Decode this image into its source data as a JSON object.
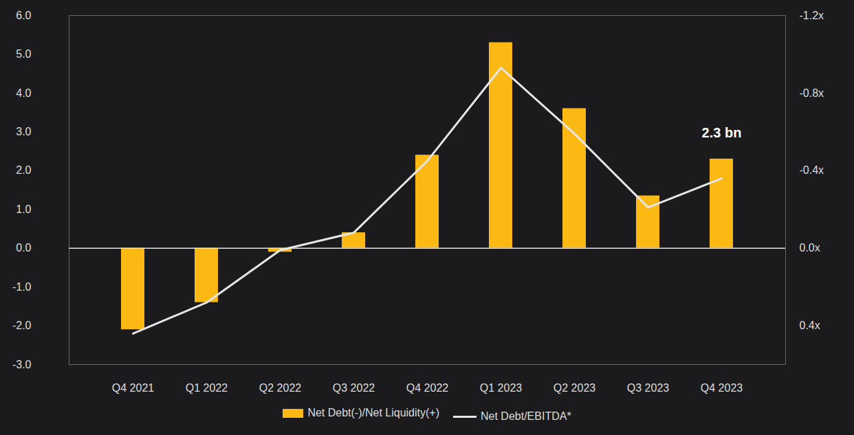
{
  "chart_data": {
    "type": "bar",
    "categories": [
      "Q4 2021",
      "Q1 2022",
      "Q2 2022",
      "Q3 2022",
      "Q4 2022",
      "Q1 2023",
      "Q2 2023",
      "Q3 2023",
      "Q4 2023"
    ],
    "series": [
      {
        "name": "Net Debt(-)/Net Liquidity(+)",
        "type": "bar",
        "color": "#FDB913",
        "values": [
          -2.1,
          -1.4,
          -0.1,
          0.4,
          2.4,
          5.3,
          3.6,
          1.35,
          2.3
        ]
      },
      {
        "name": "Net Debt/EBITDA*",
        "type": "line",
        "color": "#E6E6E6",
        "axis": "y2",
        "values": [
          0.44,
          0.28,
          0.01,
          -0.08,
          -0.45,
          -0.93,
          -0.59,
          -0.21,
          -0.36
        ]
      }
    ],
    "ylim": [
      -3,
      6
    ],
    "yticks": [
      {
        "value": -3,
        "label": "-3.0"
      },
      {
        "value": -2,
        "label": "-2.0"
      },
      {
        "value": -1,
        "label": "-1.0"
      },
      {
        "value": 0,
        "label": "0.0"
      },
      {
        "value": 1,
        "label": "1.0"
      },
      {
        "value": 2,
        "label": "2.0"
      },
      {
        "value": 3,
        "label": "3.0"
      },
      {
        "value": 4,
        "label": "4.0"
      },
      {
        "value": 5,
        "label": "5.0"
      },
      {
        "value": 6,
        "label": "6.0"
      }
    ],
    "y2lim": [
      0.6,
      -1.2
    ],
    "y2ticks": [
      {
        "value": 0.4,
        "label": "0.4x"
      },
      {
        "value": 0,
        "label": "0.0x"
      },
      {
        "value": -0.4,
        "label": "-0.4x"
      },
      {
        "value": -0.8,
        "label": "-0.8x"
      },
      {
        "value": -1.2,
        "label": "-1.2x"
      }
    ],
    "grid": false,
    "legend": "bottom",
    "annotations": [
      {
        "x": "Q4 2023",
        "y": 2.3,
        "text": "2.3 bn"
      }
    ]
  }
}
